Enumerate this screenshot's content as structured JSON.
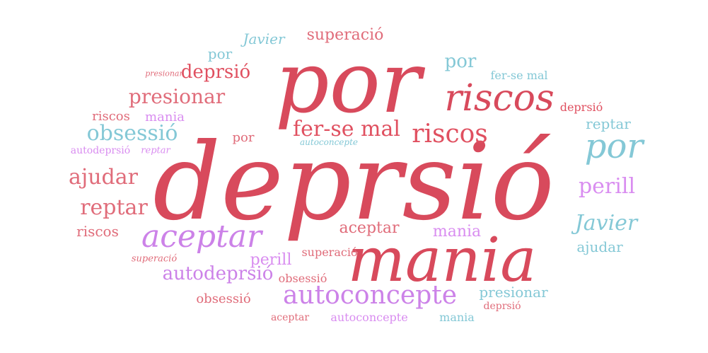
{
  "words": [
    "deprsió",
    "por",
    "mania",
    "riscos",
    "aceptar",
    "autoconcepte",
    "por",
    "riscos",
    "fer-se mal",
    "obsessió",
    "ajudar",
    "reptar",
    "perill",
    "presionar",
    "Javier",
    "superació",
    "deprsió",
    "autodeprsió",
    "mania",
    "por",
    "Javier",
    "ajudar",
    "aceptar",
    "presionar",
    "perill",
    "reptar",
    "riscos",
    "riscos",
    "mania",
    "por",
    "deprsió",
    "por",
    "obsessió",
    "superació",
    "fer-se mal",
    "mania",
    "autoconcepte",
    "aceptar",
    "deprsió",
    "obsessió",
    "autodeprsió",
    "superació",
    "presionar",
    "reptar",
    "autoconcepte"
  ],
  "colors": {
    "red": "#e05060",
    "pink": "#cc82e8",
    "teal": "#84c8d6"
  }
}
